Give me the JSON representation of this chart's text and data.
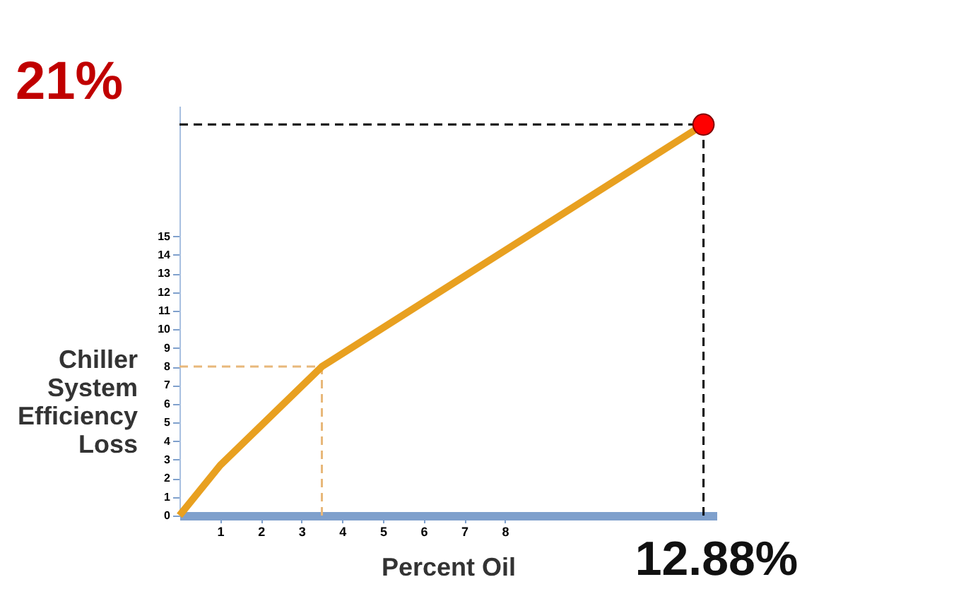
{
  "chart_data": {
    "type": "line",
    "xlabel": "Percent Oil",
    "ylabel": "Chiller System Efficiency Loss",
    "series": [
      {
        "color": "#e8a020",
        "line_style": "solid",
        "x": [
          0,
          1,
          3.5,
          12.88
        ],
        "values": [
          0,
          2.7,
          8,
          21
        ]
      },
      {
        "type": "scatter",
        "color": "#ff0000",
        "marker": "circle",
        "x": [
          12.88
        ],
        "values": [
          21
        ]
      }
    ],
    "xlim": [
      0,
      13.2
    ],
    "ylim": [
      0,
      22
    ],
    "xticks": [
      1,
      2,
      3,
      4,
      5,
      6,
      7,
      8
    ],
    "yticks": [
      0,
      1,
      2,
      3,
      4,
      5,
      6,
      7,
      8,
      9,
      10,
      11,
      12,
      13,
      14,
      15
    ],
    "ref_lines": [
      {
        "axis": "y",
        "value": 8,
        "color": "#e8b87a",
        "line_style": "dashed"
      },
      {
        "axis": "x",
        "value": 3.5,
        "color": "#e8b87a",
        "line_style": "dashed"
      },
      {
        "axis": "y",
        "value": 21,
        "color": "#000000",
        "line_style": "dashed"
      },
      {
        "axis": "x",
        "value": 12.88,
        "color": "#000000",
        "line_style": "dashed"
      }
    ],
    "annotations": [
      "21%",
      "12.88%"
    ],
    "grid": false
  }
}
